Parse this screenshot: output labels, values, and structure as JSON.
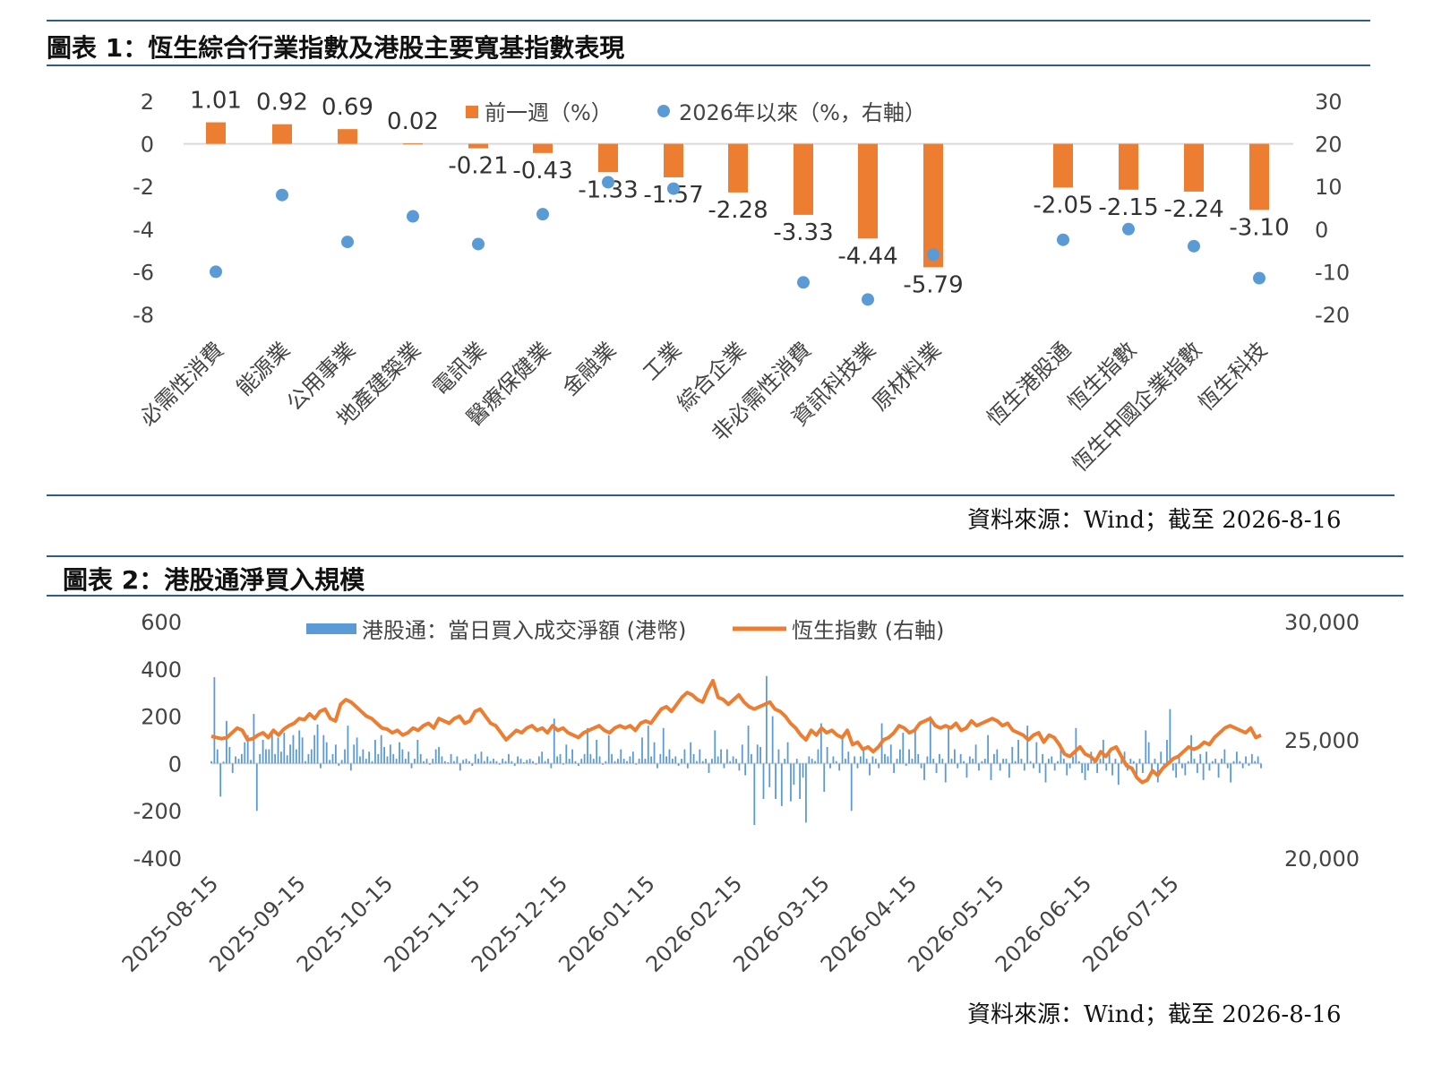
{
  "figure1": {
    "title": "圖表 1：恆生綜合行業指數及港股主要寬基指數表現",
    "source": "資料來源：Wind；截至 2026-8-16",
    "colors": {
      "bar": "#ed7d31",
      "dot": "#5b9bd5",
      "axis": "#d9d9d9"
    }
  },
  "figure2": {
    "title": "圖表 2：港股通淨買入規模",
    "source": "資料來源：Wind；截至 2026-8-16",
    "colors": {
      "bar": "#5b9bd5",
      "line": "#ed7d31"
    }
  },
  "chart_data": [
    {
      "type": "bar",
      "categories": [
        "必需性消費",
        "能源業",
        "公用事業",
        "地產建築業",
        "電訊業",
        "醫療保健業",
        "金融業",
        "工業",
        "綜合企業",
        "非必需性消費",
        "資訊科技業",
        "原材料業",
        "恆生港股通",
        "恆生指數",
        "恆生中國企業指數",
        "恆生科技"
      ],
      "series": [
        {
          "name": "前一週（%）",
          "axis": "left",
          "values": [
            1.01,
            0.92,
            0.69,
            0.02,
            -0.21,
            -0.43,
            -1.33,
            -1.57,
            -2.28,
            -3.33,
            -4.44,
            -5.79,
            -2.05,
            -2.15,
            -2.24,
            -3.1
          ]
        },
        {
          "name": "2026年以來（%，右軸）",
          "axis": "right",
          "type": "scatter",
          "values": [
            -10,
            8,
            -3,
            3,
            -3.5,
            3.5,
            11,
            9.5,
            null,
            -12.5,
            -16.5,
            -6,
            -2.5,
            0,
            -4,
            -11.5
          ]
        }
      ],
      "data_labels": [
        "1.01",
        "0.92",
        "0.69",
        "0.02",
        "-0.21",
        "-0.43",
        "-1.33",
        "-1.57",
        "-2.28",
        "-3.33",
        "-4.44",
        "-5.79",
        "-2.05",
        "-2.15",
        "-2.24",
        "-3.10"
      ],
      "y_left": {
        "ticks": [
          "2",
          "0",
          "-2",
          "-4",
          "-6",
          "-8"
        ],
        "ylim": [
          -8,
          2
        ]
      },
      "y_right": {
        "ticks": [
          "30",
          "20",
          "10",
          "0",
          "-10",
          "-20"
        ],
        "ylim": [
          -20,
          30
        ]
      },
      "legend": "top"
    },
    {
      "type": "bar+line",
      "x_ticks": [
        "2025-08-15",
        "2025-09-15",
        "2025-10-15",
        "2025-11-15",
        "2025-12-15",
        "2026-01-15",
        "2026-02-15",
        "2026-03-15",
        "2026-04-15",
        "2026-05-15",
        "2026-06-15",
        "2026-07-15"
      ],
      "series": [
        {
          "name": "港股通：當日買入成交淨額 (港幣)",
          "axis": "left",
          "type": "bar",
          "values": [
            10,
            365,
            60,
            -140,
            8,
            180,
            70,
            -40,
            30,
            20,
            40,
            90,
            120,
            15,
            210,
            -200,
            40,
            100,
            60,
            60,
            140,
            40,
            110,
            50,
            130,
            35,
            80,
            120,
            60,
            140,
            110,
            10,
            40,
            60,
            120,
            165,
            -20,
            120,
            90,
            15,
            40,
            80,
            -10,
            15,
            60,
            160,
            -30,
            80,
            110,
            30,
            60,
            20,
            50,
            10,
            100,
            40,
            120,
            70,
            30,
            80,
            40,
            20,
            90,
            60,
            20,
            50,
            -20,
            20,
            100,
            40,
            10,
            20,
            -5,
            20,
            60,
            70,
            30,
            10,
            5,
            40,
            10,
            30,
            -30,
            15,
            20,
            10,
            -10,
            40,
            20,
            50,
            10,
            30,
            10,
            20,
            10,
            -5,
            20,
            10,
            40,
            10,
            -10,
            30,
            20,
            5,
            15,
            20,
            10,
            -5,
            30,
            50,
            10,
            20,
            -20,
            190,
            30,
            40,
            -5,
            80,
            20,
            60,
            10,
            -10,
            20,
            40,
            150,
            40,
            20,
            100,
            30,
            -5,
            10,
            120,
            40,
            10,
            20,
            60,
            20,
            10,
            30,
            50,
            -5,
            20,
            110,
            20,
            160,
            30,
            90,
            -20,
            40,
            150,
            30,
            60,
            20,
            30,
            -10,
            20,
            60,
            -20,
            90,
            40,
            10,
            60,
            10,
            20,
            -40,
            20,
            140,
            30,
            60,
            -20,
            60,
            10,
            30,
            20,
            -30,
            80,
            -50,
            160,
            40,
            -260,
            80,
            70,
            -150,
            370,
            -100,
            200,
            -150,
            60,
            -180,
            20,
            90,
            -160,
            -90,
            20,
            -150,
            -60,
            -250,
            30,
            20,
            10,
            60,
            170,
            -120,
            70,
            -20,
            30,
            10,
            -30,
            120,
            20,
            50,
            -200,
            30,
            -20,
            30,
            60,
            20,
            -50,
            30,
            20,
            -20,
            170,
            40,
            30,
            80,
            -40,
            20,
            60,
            130,
            -10,
            60,
            20,
            140,
            40,
            -20,
            -70,
            30,
            200,
            20,
            -40,
            40,
            20,
            -80,
            160,
            20,
            60,
            -20,
            40,
            10,
            -60,
            30,
            20,
            80,
            -30,
            10,
            20,
            120,
            -70,
            40,
            60,
            -30,
            20,
            20,
            -60,
            70,
            10,
            100,
            20,
            -30,
            160,
            10,
            -20,
            90,
            -40,
            40,
            -80,
            20,
            30,
            -30,
            10,
            80,
            20,
            -50,
            -20,
            30,
            150,
            10,
            -40,
            -70,
            -30,
            50,
            20,
            -40,
            20,
            100,
            -30,
            40,
            -50,
            20,
            -90,
            30,
            50,
            -30,
            20,
            10,
            -60,
            20,
            -40,
            140,
            90,
            -30,
            20,
            -80,
            50,
            -20,
            100,
            230,
            -30,
            -60,
            30,
            -20,
            -50,
            10,
            120,
            20,
            -40,
            40,
            -70,
            50,
            -30,
            10,
            20,
            -60,
            20,
            60,
            -20,
            -80,
            10,
            50,
            10,
            -20,
            30,
            -10,
            40,
            10,
            30,
            -20
          ]
        },
        {
          "name": "恆生指數 (右軸)",
          "axis": "right",
          "type": "line",
          "values": [
            25150,
            25100,
            25050,
            25100,
            25300,
            25500,
            25400,
            25000,
            25050,
            25200,
            25300,
            25100,
            25400,
            25200,
            25450,
            25600,
            25700,
            25900,
            25850,
            26100,
            25900,
            26200,
            26300,
            25900,
            25800,
            26500,
            26700,
            26600,
            26400,
            26200,
            26000,
            25900,
            25700,
            25500,
            25450,
            25300,
            25400,
            25200,
            25300,
            25500,
            25400,
            25600,
            25700,
            25500,
            25900,
            25800,
            25700,
            25900,
            26000,
            25700,
            25800,
            26200,
            26300,
            26000,
            25700,
            25600,
            25300,
            25000,
            25200,
            25400,
            25300,
            25500,
            25600,
            25400,
            25500,
            25300,
            25600,
            25400,
            25500,
            25300,
            25200,
            25100,
            25300,
            25400,
            25500,
            25600,
            25400,
            25300,
            25500,
            25600,
            25500,
            25600,
            25400,
            25700,
            25800,
            25700,
            26000,
            26300,
            26400,
            26200,
            26500,
            26800,
            27000,
            26900,
            26700,
            26600,
            27100,
            27500,
            26800,
            26700,
            26500,
            26700,
            26900,
            26600,
            26400,
            26300,
            26400,
            26500,
            26600,
            26300,
            26200,
            26000,
            25700,
            25500,
            25200,
            25000,
            25400,
            25200,
            25500,
            25300,
            25400,
            25200,
            25100,
            25400,
            24800,
            24900,
            24600,
            24700,
            24500,
            24700,
            25000,
            25100,
            25300,
            25600,
            25500,
            25300,
            25400,
            25700,
            25800,
            25900,
            25600,
            25500,
            25600,
            25500,
            25700,
            25400,
            25500,
            25800,
            25600,
            25700,
            25800,
            25900,
            25800,
            25600,
            25700,
            25400,
            25300,
            25200,
            25000,
            25200,
            25300,
            24900,
            25200,
            25100,
            24800,
            24400,
            24300,
            24500,
            24700,
            24400,
            24300,
            24100,
            24500,
            24300,
            24600,
            24700,
            24300,
            23900,
            23800,
            23400,
            23200,
            23300,
            23700,
            23500,
            23800,
            24000,
            24200,
            24300,
            24500,
            24700,
            24600,
            24700,
            24900,
            24800,
            25100,
            25300,
            25500,
            25600,
            25500,
            25400,
            25300,
            25500,
            25100,
            25200
          ]
        }
      ],
      "y_left": {
        "ticks": [
          "600",
          "400",
          "200",
          "0",
          "-200",
          "-400"
        ],
        "ylim": [
          -400,
          600
        ]
      },
      "y_right": {
        "ticks": [
          "30,000",
          "25,000",
          "20,000"
        ],
        "ylim": [
          20000,
          30000
        ]
      },
      "legend": "top"
    }
  ]
}
